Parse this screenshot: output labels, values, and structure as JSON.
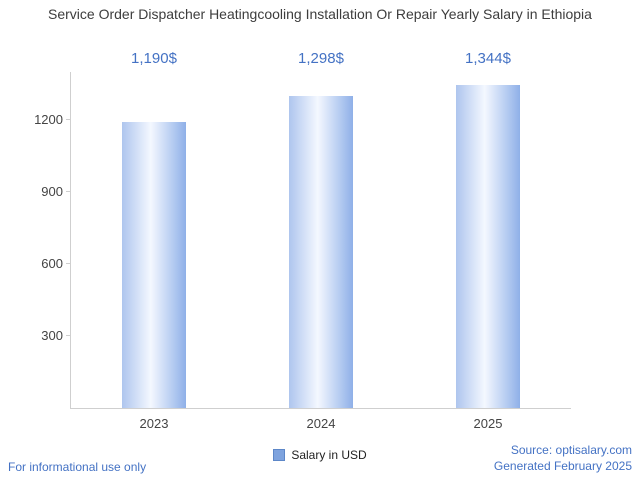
{
  "title": "Service Order Dispatcher Heatingcooling Installation Or Repair Yearly Salary in Ethiopia",
  "chart_data": {
    "type": "bar",
    "categories": [
      "2023",
      "2024",
      "2025"
    ],
    "values": [
      1190,
      1298,
      1344
    ],
    "value_labels": [
      "1,190$",
      "1,298$",
      "1,344$"
    ],
    "series": [
      {
        "name": "Salary in USD",
        "values": [
          1190,
          1298,
          1344
        ]
      }
    ],
    "title": "Service Order Dispatcher Heatingcooling Installation Or Repair Yearly Salary in Ethiopia",
    "xlabel": "",
    "ylabel": "",
    "ylim": [
      0,
      1400
    ],
    "yticks": [
      300,
      600,
      900,
      1200
    ],
    "grid": false,
    "legend_position": "bottom"
  },
  "legend": {
    "label": "Salary in USD"
  },
  "footer": {
    "left": "For informational use only",
    "source": "Source: optisalary.com",
    "generated": "Generated February 2025"
  },
  "colors": {
    "accent": "#4472c4",
    "bar_edge_left": "#aec5ee",
    "bar_mid": "#f4f8ff",
    "bar_edge_right": "#8fb0e8",
    "legend_swatch": "#7ea3de",
    "legend_swatch_border": "#5d87c8",
    "axis": "#cfcfcf",
    "title_text": "#3d3d3d",
    "tick_text": "#444444"
  }
}
